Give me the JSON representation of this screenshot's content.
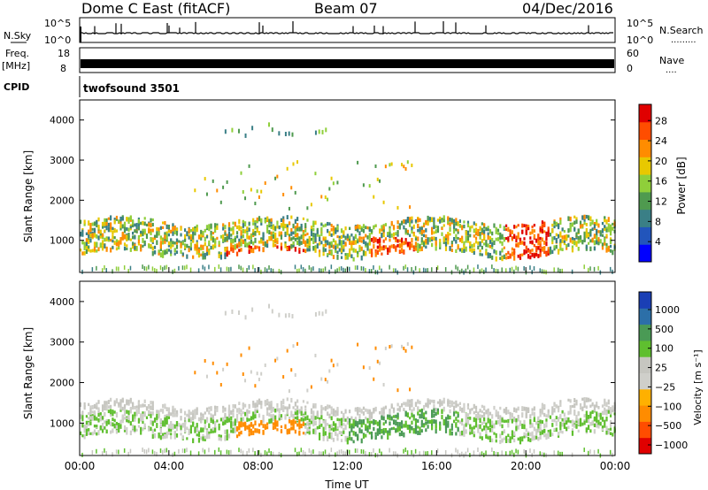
{
  "header": {
    "station": "Dome C East (fitACF)",
    "beam": "Beam 07",
    "date": "04/Dec/2016"
  },
  "side_labels": {
    "nsky": "N.Sky",
    "freq_top": "Freq.",
    "freq_unit": "[MHz]",
    "cpid": "CPID",
    "nsearch": "N.Search",
    "nave": "Nave",
    "nsearch_dots": ".........",
    "nave_dots": "....",
    "freq_dash": "—"
  },
  "cpid_value": "twofsound 3501",
  "colors": {
    "power": [
      "#0000ff",
      "#2255bb",
      "#3a7f86",
      "#4f9a4f",
      "#8fcf3a",
      "#e8c800",
      "#ff8c00",
      "#ff4d00",
      "#e00000"
    ],
    "velocity": [
      "#e00000",
      "#ff4d00",
      "#ff8c00",
      "#ffb000",
      "#cfcfca",
      "#c6c6c0",
      "#5fbf2f",
      "#4a9a55",
      "#2c6fa8",
      "#1a3fb5"
    ]
  },
  "chart_data": [
    {
      "type": "line",
      "name": "nsky-panel",
      "ylabel": "N.Sky",
      "left_ticks": [
        "10^5",
        "10^0"
      ],
      "right_ticks": [
        "10^5",
        "10^0"
      ],
      "right_label": "N.Search"
    },
    {
      "type": "line",
      "name": "freq-panel",
      "ylabel": "Freq. [MHz]",
      "left_ticks": [
        "18",
        "8"
      ],
      "right_ticks": [
        "60",
        "0"
      ],
      "right_label": "Nave"
    },
    {
      "type": "heatmap",
      "name": "power-panel",
      "xlabel": "",
      "ylabel": "Slant Range [km]",
      "xlim": [
        0,
        24
      ],
      "ylim": [
        200,
        4500
      ],
      "y_ticks": [
        1000,
        2000,
        3000,
        4000
      ],
      "colorbar": {
        "label": "Power [dB]",
        "ticks": [
          "4",
          "8",
          "12",
          "16",
          "20",
          "24",
          "28"
        ],
        "range": [
          0,
          30
        ]
      }
    },
    {
      "type": "heatmap",
      "name": "velocity-panel",
      "xlabel": "Time UT",
      "ylabel": "Slant Range [km]",
      "xlim": [
        0,
        24
      ],
      "ylim": [
        200,
        4500
      ],
      "x_ticks": [
        "00:00",
        "04:00",
        "08:00",
        "12:00",
        "16:00",
        "20:00",
        "00:00"
      ],
      "y_ticks": [
        1000,
        2000,
        3000,
        4000
      ],
      "colorbar": {
        "label": "Velocity [m s⁻¹]",
        "ticks": [
          "1000",
          "500",
          "100",
          "25",
          "−25",
          "−100",
          "−500",
          "−1000"
        ]
      }
    }
  ]
}
